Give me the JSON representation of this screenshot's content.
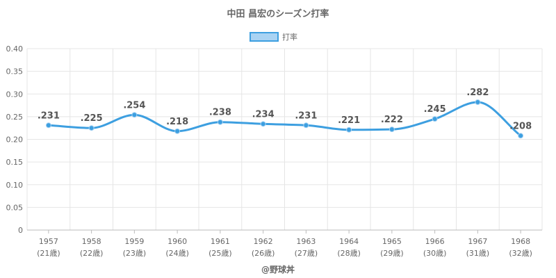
{
  "chart_data": {
    "type": "line",
    "title": "中田 昌宏のシーズン打率",
    "categories": [
      "1957",
      "1958",
      "1959",
      "1960",
      "1961",
      "1962",
      "1963",
      "1964",
      "1965",
      "1966",
      "1967",
      "1968"
    ],
    "sublabels": [
      "(21歳)",
      "(22歳)",
      "(23歳)",
      "(24歳)",
      "(25歳)",
      "(26歳)",
      "(27歳)",
      "(28歳)",
      "(29歳)",
      "(30歳)",
      "(31歳)",
      "(32歳)"
    ],
    "series": [
      {
        "name": "打率",
        "values": [
          0.231,
          0.225,
          0.254,
          0.218,
          0.238,
          0.234,
          0.231,
          0.221,
          0.222,
          0.245,
          0.282,
          0.208
        ],
        "labels": [
          ".231",
          ".225",
          ".254",
          ".218",
          ".238",
          ".234",
          ".231",
          ".221",
          ".222",
          ".245",
          ".282",
          ".208"
        ]
      }
    ],
    "ylim": [
      0,
      0.4
    ],
    "yticks": [
      "0",
      "0.05",
      "0.10",
      "0.15",
      "0.20",
      "0.25",
      "0.30",
      "0.35",
      "0.40"
    ],
    "grid": true,
    "legend_position": "top-center",
    "colors": {
      "line": "#3d9fe0",
      "fill": "#a9d3f3",
      "grid": "#e5e5e5",
      "axis": "#bbbbbb"
    }
  },
  "footer": "@野球丼"
}
